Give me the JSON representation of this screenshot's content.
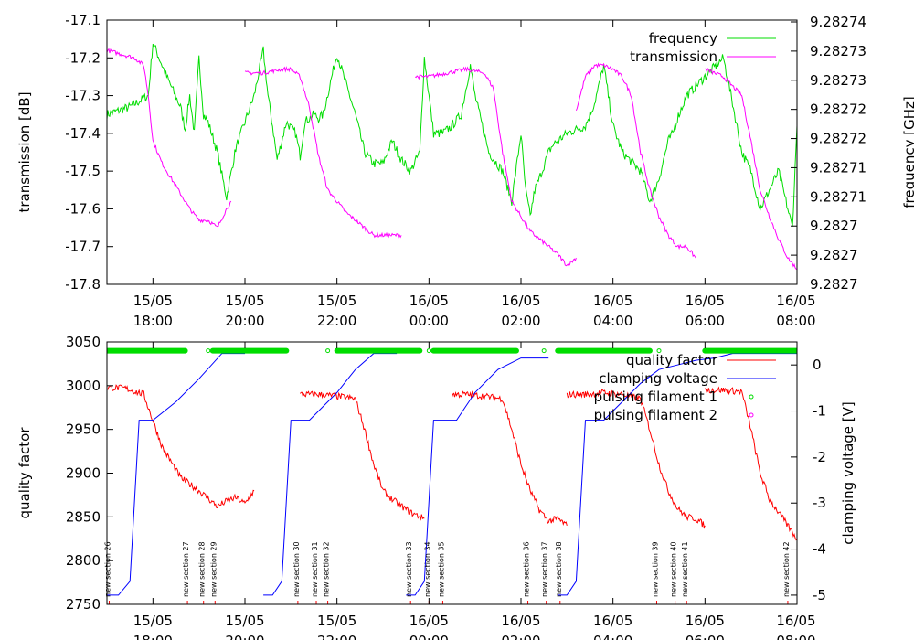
{
  "chart_data": [
    {
      "type": "line",
      "ylabel": "transmission [dB]",
      "y2label": "frequency [GHz]",
      "ylim": [
        -17.8,
        -17.1
      ],
      "yticks": [
        "-17.1",
        "-17.2",
        "-17.3",
        "-17.4",
        "-17.5",
        "-17.6",
        "-17.7",
        "-17.8"
      ],
      "y2lim": [
        9.2827,
        9.28274
      ],
      "y2ticks": [
        "9.28274",
        "9.28273",
        "9.28273",
        "9.28272",
        "9.28272",
        "9.28271",
        "9.28271",
        "9.2827",
        "9.2827",
        "9.2827"
      ],
      "xlim_hours": [
        17.0,
        32.0
      ],
      "xticks": [
        {
          "date": "15/05",
          "time": "18:00",
          "hour": 18
        },
        {
          "date": "15/05",
          "time": "20:00",
          "hour": 20
        },
        {
          "date": "15/05",
          "time": "22:00",
          "hour": 22
        },
        {
          "date": "16/05",
          "time": "00:00",
          "hour": 24
        },
        {
          "date": "16/05",
          "time": "02:00",
          "hour": 26
        },
        {
          "date": "16/05",
          "time": "04:00",
          "hour": 28
        },
        {
          "date": "16/05",
          "time": "06:00",
          "hour": 30
        },
        {
          "date": "16/05",
          "time": "08:00",
          "hour": 32
        }
      ],
      "legend_position": "top-right",
      "series": [
        {
          "name": "frequency",
          "color": "#00dd00",
          "x": [
            17.0,
            17.5,
            17.9,
            18.0,
            18.3,
            18.6,
            18.7,
            18.8,
            18.9,
            19.0,
            19.1,
            19.2,
            19.4,
            19.6,
            19.8,
            20.0,
            20.2,
            20.4,
            20.5,
            20.6,
            20.7,
            20.9,
            21.1,
            21.2,
            21.3,
            21.5,
            21.6,
            21.7,
            22.0,
            22.4,
            22.6,
            22.8,
            23.0,
            23.2,
            23.4,
            23.6,
            23.8,
            23.9,
            24.1,
            24.3,
            24.5,
            24.7,
            24.9,
            25.0,
            25.3,
            25.6,
            25.8,
            26.0,
            26.1,
            26.2,
            26.3,
            26.4,
            26.6,
            26.7,
            27.0,
            27.4,
            27.6,
            27.8,
            27.9,
            28.0,
            28.2,
            28.6,
            28.8,
            29.0,
            29.2,
            29.3,
            29.4,
            29.6,
            30.0,
            30.4,
            30.6,
            30.8,
            31.0,
            31.2,
            31.4,
            31.6,
            31.8,
            31.9,
            32.0
          ],
          "values": [
            -17.35,
            -17.33,
            -17.3,
            -17.16,
            -17.25,
            -17.33,
            -17.39,
            -17.3,
            -17.4,
            -17.2,
            -17.35,
            -17.37,
            -17.45,
            -17.57,
            -17.44,
            -17.37,
            -17.3,
            -17.18,
            -17.3,
            -17.38,
            -17.47,
            -17.37,
            -17.4,
            -17.46,
            -17.37,
            -17.35,
            -17.36,
            -17.35,
            -17.19,
            -17.35,
            -17.45,
            -17.48,
            -17.48,
            -17.42,
            -17.47,
            -17.5,
            -17.45,
            -17.2,
            -17.4,
            -17.4,
            -17.38,
            -17.35,
            -17.22,
            -17.3,
            -17.45,
            -17.5,
            -17.58,
            -17.4,
            -17.55,
            -17.62,
            -17.55,
            -17.52,
            -17.45,
            -17.43,
            -17.4,
            -17.38,
            -17.32,
            -17.22,
            -17.3,
            -17.38,
            -17.45,
            -17.5,
            -17.58,
            -17.52,
            -17.42,
            -17.4,
            -17.36,
            -17.3,
            -17.25,
            -17.2,
            -17.32,
            -17.45,
            -17.5,
            -17.6,
            -17.55,
            -17.5,
            -17.6,
            -17.65,
            -17.38
          ]
        },
        {
          "name": "transmission",
          "color": "#ff00ff",
          "segments": [
            {
              "x": [
                17.0,
                17.3,
                17.6,
                17.8,
                17.9,
                18.0,
                18.2,
                18.4,
                18.6,
                18.8,
                19.0,
                19.2,
                19.4,
                19.6,
                19.7
              ],
              "values": [
                -17.18,
                -17.19,
                -17.2,
                -17.22,
                -17.3,
                -17.42,
                -17.48,
                -17.52,
                -17.56,
                -17.6,
                -17.63,
                -17.63,
                -17.65,
                -17.6,
                -17.58
              ]
            },
            {
              "x": [
                20.0,
                20.4,
                20.8,
                21.0,
                21.2,
                21.4,
                21.6,
                21.8,
                22.0,
                22.2,
                22.4,
                22.6,
                22.8,
                23.0,
                23.2,
                23.4
              ],
              "values": [
                -17.24,
                -17.24,
                -17.23,
                -17.23,
                -17.25,
                -17.33,
                -17.46,
                -17.55,
                -17.58,
                -17.61,
                -17.63,
                -17.65,
                -17.67,
                -17.67,
                -17.67,
                -17.67
              ]
            },
            {
              "x": [
                23.7,
                24.0,
                24.4,
                24.8,
                25.2,
                25.4,
                25.6,
                25.8,
                26.0,
                26.2,
                26.4,
                26.6,
                26.8,
                27.0,
                27.2
              ],
              "values": [
                -17.25,
                -17.25,
                -17.24,
                -17.23,
                -17.24,
                -17.28,
                -17.45,
                -17.58,
                -17.62,
                -17.66,
                -17.68,
                -17.7,
                -17.72,
                -17.75,
                -17.73
              ]
            },
            {
              "x": [
                27.2,
                27.4,
                27.6,
                27.8,
                28.0,
                28.2,
                28.4,
                28.6,
                28.8,
                29.0,
                29.2,
                29.4,
                29.6,
                29.8
              ],
              "values": [
                -17.34,
                -17.25,
                -17.22,
                -17.22,
                -17.23,
                -17.25,
                -17.3,
                -17.45,
                -17.55,
                -17.62,
                -17.67,
                -17.7,
                -17.7,
                -17.73
              ]
            },
            {
              "x": [
                30.0,
                30.2,
                30.4,
                30.8,
                31.0,
                31.2,
                31.4,
                31.6,
                31.8,
                32.0
              ],
              "values": [
                -17.23,
                -17.24,
                -17.25,
                -17.3,
                -17.42,
                -17.55,
                -17.62,
                -17.68,
                -17.73,
                -17.76
              ]
            }
          ]
        }
      ]
    },
    {
      "type": "line",
      "ylabel": "quality factor",
      "y2label": "clamping voltage [V]",
      "ylim": [
        2750,
        3050
      ],
      "yticks": [
        "3050",
        "3000",
        "2950",
        "2900",
        "2850",
        "2800",
        "2750"
      ],
      "y2lim": [
        -5.2,
        0.5
      ],
      "y2ticks": [
        "0",
        "-1",
        "-2",
        "-3",
        "-4",
        "-5"
      ],
      "xlim_hours": [
        17.0,
        32.0
      ],
      "xticks": [
        {
          "date": "15/05",
          "time": "18:00",
          "hour": 18
        },
        {
          "date": "15/05",
          "time": "20:00",
          "hour": 20
        },
        {
          "date": "15/05",
          "time": "22:00",
          "hour": 22
        },
        {
          "date": "16/05",
          "time": "00:00",
          "hour": 24
        },
        {
          "date": "16/05",
          "time": "02:00",
          "hour": 26
        },
        {
          "date": "16/05",
          "time": "04:00",
          "hour": 28
        },
        {
          "date": "16/05",
          "time": "06:00",
          "hour": 30
        },
        {
          "date": "16/05",
          "time": "08:00",
          "hour": 32
        }
      ],
      "legend_position": "top-right",
      "series": [
        {
          "name": "quality factor",
          "color": "#ff0000",
          "segments": [
            {
              "x": [
                17.0,
                17.4,
                17.8,
                18.0,
                18.2,
                18.6,
                19.0,
                19.4,
                19.6,
                19.8,
                20.0,
                20.2
              ],
              "values": [
                2998,
                2997,
                2990,
                2960,
                2930,
                2895,
                2880,
                2862,
                2868,
                2872,
                2865,
                2880
              ]
            },
            {
              "x": [
                21.2,
                21.6,
                22.0,
                22.4,
                22.6,
                22.8,
                23.0,
                23.2,
                23.6,
                23.9
              ],
              "values": [
                2990,
                2990,
                2988,
                2985,
                2950,
                2910,
                2880,
                2870,
                2855,
                2848
              ]
            },
            {
              "x": [
                24.5,
                24.8,
                25.2,
                25.6,
                25.8,
                26.0,
                26.2,
                26.4,
                26.6,
                26.8,
                27.0
              ],
              "values": [
                2990,
                2990,
                2988,
                2985,
                2950,
                2910,
                2880,
                2858,
                2845,
                2848,
                2840
              ]
            },
            {
              "x": [
                27.0,
                27.4,
                27.8,
                28.2,
                28.6,
                28.8,
                29.0,
                29.2,
                29.4,
                29.6,
                29.8,
                30.0
              ],
              "values": [
                2990,
                2990,
                2992,
                2990,
                2985,
                2950,
                2910,
                2880,
                2860,
                2850,
                2848,
                2840
              ]
            },
            {
              "x": [
                30.0,
                30.4,
                30.8,
                31.0,
                31.2,
                31.4,
                31.6,
                31.8,
                32.0
              ],
              "values": [
                2995,
                2995,
                2993,
                2950,
                2900,
                2870,
                2855,
                2840,
                2825
              ]
            }
          ]
        },
        {
          "name": "clamping voltage",
          "color": "#0000ff",
          "segments": [
            {
              "x": [
                17.0,
                17.25,
                17.5,
                17.7,
                18.0,
                18.5,
                19.0,
                19.5,
                20.0
              ],
              "values": [
                -5.0,
                -5.0,
                -4.7,
                -1.2,
                -1.2,
                -0.8,
                -0.3,
                0.25,
                0.25
              ]
            },
            {
              "x": [
                20.4,
                20.6,
                20.8,
                21.0,
                21.4,
                22.0,
                22.4,
                22.8,
                23.3
              ],
              "values": [
                -5.0,
                -5.0,
                -4.7,
                -1.2,
                -1.2,
                -0.6,
                -0.1,
                0.25,
                0.25
              ]
            },
            {
              "x": [
                23.5,
                23.7,
                23.9,
                24.1,
                24.6,
                25.0,
                25.5,
                26.0,
                26.6
              ],
              "values": [
                -5.0,
                -5.0,
                -4.7,
                -1.2,
                -1.2,
                -0.6,
                -0.1,
                0.15,
                0.15
              ]
            },
            {
              "x": [
                26.8,
                27.0,
                27.2,
                27.4,
                27.8,
                28.2,
                28.6,
                29.0,
                29.4,
                29.8,
                30.2,
                30.6,
                31.0,
                31.4,
                32.0
              ],
              "values": [
                -5.0,
                -5.0,
                -4.7,
                -1.2,
                -1.2,
                -0.8,
                -0.4,
                -0.1,
                0.0,
                0.1,
                0.15,
                0.25,
                0.25,
                0.25,
                0.25
              ]
            }
          ]
        },
        {
          "name": "pulsing filament 1",
          "color": "#00dd00",
          "marker": "o",
          "row": 3040,
          "bands": [
            [
              17.0,
              18.7
            ],
            [
              19.3,
              20.9
            ],
            [
              22.0,
              23.8
            ],
            [
              24.1,
              25.9
            ],
            [
              26.8,
              28.8
            ],
            [
              30.0,
              32.0
            ]
          ],
          "single_points": [
            19.2,
            21.8,
            24.0,
            26.5,
            29.0
          ]
        },
        {
          "name": "pulsing filament 2",
          "color": "#ff00ff",
          "marker": "o",
          "row": 3040,
          "bands": [],
          "single_points": []
        }
      ],
      "annotations": [
        {
          "label": "new section 26",
          "hour": 17.05
        },
        {
          "label": "new section 27",
          "hour": 18.75
        },
        {
          "label": "new section 28",
          "hour": 19.1
        },
        {
          "label": "new section 29",
          "hour": 19.35
        },
        {
          "label": "new section 30",
          "hour": 21.15
        },
        {
          "label": "new section 31",
          "hour": 21.55
        },
        {
          "label": "new section 32",
          "hour": 21.8
        },
        {
          "label": "new section 33",
          "hour": 23.6
        },
        {
          "label": "new section 34",
          "hour": 24.0
        },
        {
          "label": "new section 35",
          "hour": 24.3
        },
        {
          "label": "new section 36",
          "hour": 26.15
        },
        {
          "label": "new section 37",
          "hour": 26.55
        },
        {
          "label": "new section 38",
          "hour": 26.85
        },
        {
          "label": "new section 39",
          "hour": 28.95
        },
        {
          "label": "new section 40",
          "hour": 29.35
        },
        {
          "label": "new section 41",
          "hour": 29.6
        },
        {
          "label": "new section 42",
          "hour": 31.8
        }
      ]
    }
  ]
}
